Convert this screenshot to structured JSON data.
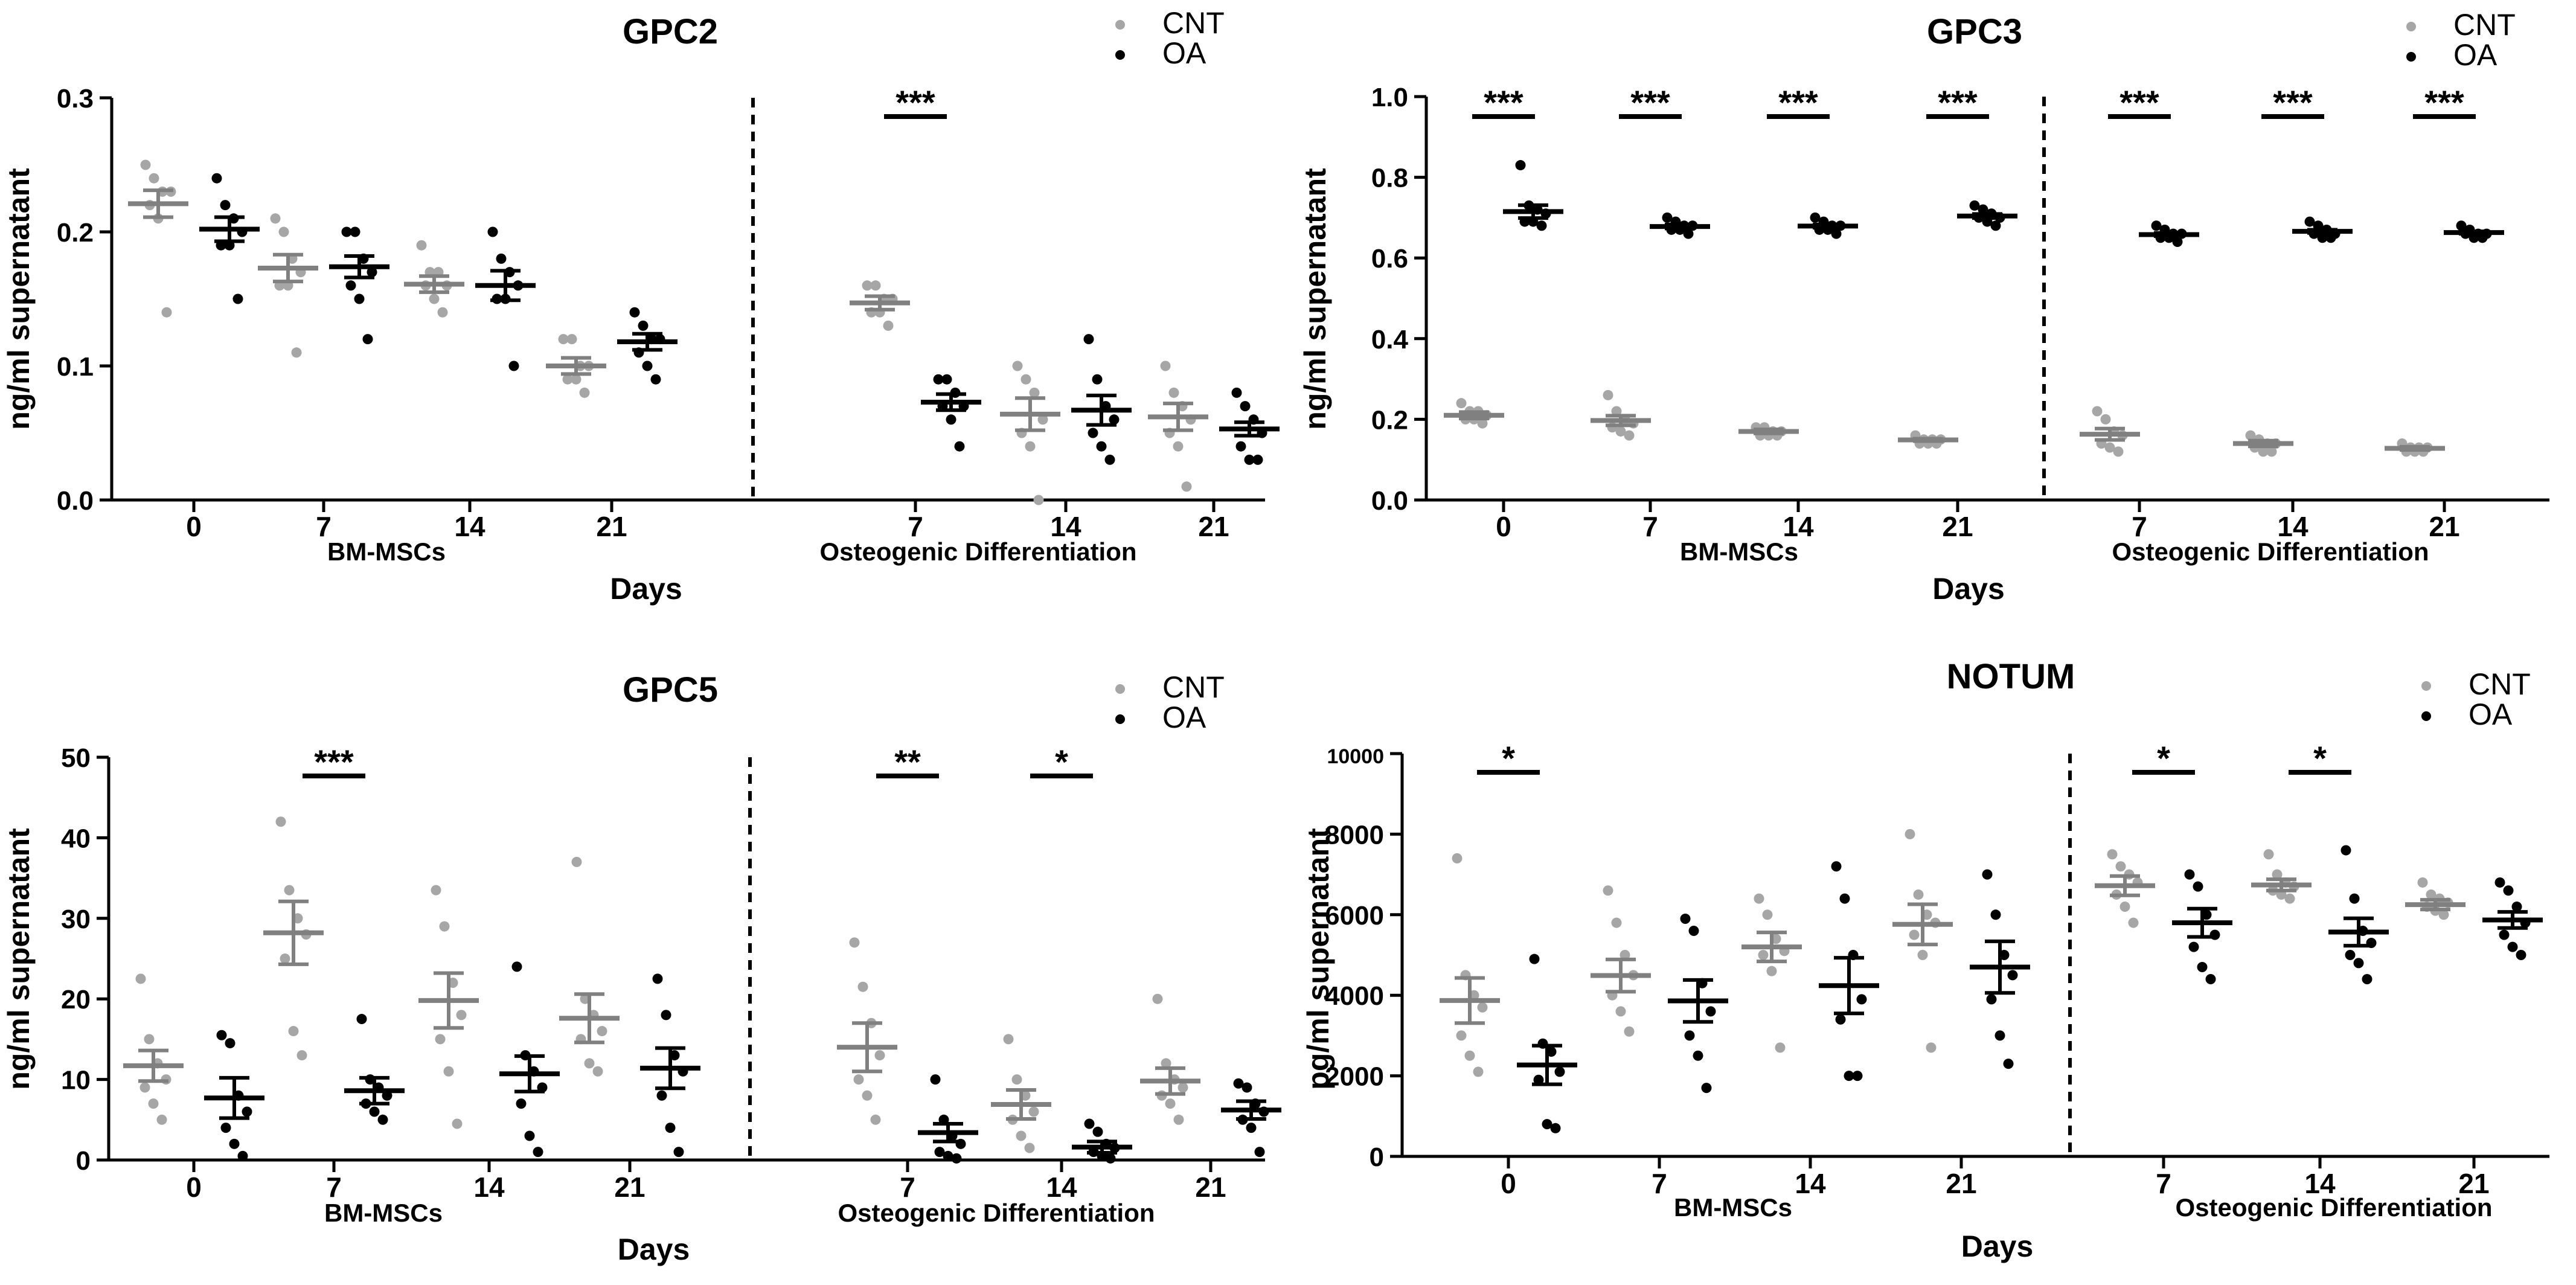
{
  "colors": {
    "CNT": "#a6a6a6",
    "CNT_mean": "#808080",
    "OA": "#000000"
  },
  "chart_data": [
    {
      "type": "scatter",
      "title": "GPC2",
      "ylabel": "ng/ml supernatant",
      "xlabel": "Days",
      "ylim": [
        0,
        0.3
      ],
      "yticks": [
        "0.0",
        "0.1",
        "0.2",
        "0.3"
      ],
      "legend": {
        "placement": "top-right",
        "entries": [
          "CNT",
          "OA"
        ]
      },
      "groups": [
        {
          "name": "BM-MSCs",
          "days": [
            "0",
            "7",
            "14",
            "21"
          ]
        },
        {
          "name": "Osteogenic Differentiation",
          "days": [
            "7",
            "14",
            "21"
          ]
        }
      ],
      "series": [
        {
          "name": "CNT",
          "mean": [
            0.221,
            0.173,
            0.161,
            0.1,
            0.147,
            0.064,
            0.062
          ],
          "sem": [
            0.01,
            0.01,
            0.006,
            0.006,
            0.005,
            0.012,
            0.01
          ],
          "points": [
            [
              0.25,
              0.24,
              0.23,
              0.23,
              0.22,
              0.21,
              0.14
            ],
            [
              0.21,
              0.2,
              0.18,
              0.17,
              0.16,
              0.16,
              0.11
            ],
            [
              0.19,
              0.17,
              0.17,
              0.16,
              0.16,
              0.15,
              0.14
            ],
            [
              0.12,
              0.12,
              0.1,
              0.1,
              0.09,
              0.09,
              0.08
            ],
            [
              0.16,
              0.16,
              0.15,
              0.15,
              0.14,
              0.14,
              0.13
            ],
            [
              0.1,
              0.09,
              0.08,
              0.06,
              0.05,
              0.04,
              0.0
            ],
            [
              0.1,
              0.08,
              0.07,
              0.06,
              0.05,
              0.04,
              0.01
            ]
          ]
        },
        {
          "name": "OA",
          "mean": [
            0.202,
            0.174,
            0.16,
            0.118,
            0.073,
            0.067,
            0.053
          ],
          "sem": [
            0.009,
            0.008,
            0.011,
            0.006,
            0.006,
            0.011,
            0.005
          ],
          "points": [
            [
              0.24,
              0.22,
              0.21,
              0.2,
              0.19,
              0.19,
              0.15
            ],
            [
              0.2,
              0.2,
              0.18,
              0.17,
              0.16,
              0.15,
              0.12
            ],
            [
              0.2,
              0.18,
              0.17,
              0.16,
              0.15,
              0.15,
              0.1
            ],
            [
              0.14,
              0.13,
              0.12,
              0.12,
              0.11,
              0.1,
              0.09
            ],
            [
              0.09,
              0.09,
              0.08,
              0.07,
              0.07,
              0.06,
              0.04
            ],
            [
              0.12,
              0.09,
              0.07,
              0.06,
              0.05,
              0.04,
              0.03
            ],
            [
              0.08,
              0.07,
              0.06,
              0.05,
              0.04,
              0.03,
              0.03
            ]
          ]
        }
      ],
      "significance": [
        {
          "index": 4,
          "label": "***"
        }
      ]
    },
    {
      "type": "scatter",
      "title": "GPC3",
      "ylabel": "ng/ml supernatant",
      "xlabel": "Days",
      "ylim": [
        0,
        1.0
      ],
      "yticks": [
        "0.0",
        "0.2",
        "0.4",
        "0.6",
        "0.8",
        "1.0"
      ],
      "legend": {
        "placement": "top-right",
        "entries": [
          "CNT",
          "OA"
        ]
      },
      "groups": [
        {
          "name": "BM-MSCs",
          "days": [
            "0",
            "7",
            "14",
            "21"
          ]
        },
        {
          "name": "Osteogenic Differentiation",
          "days": [
            "7",
            "14",
            "21"
          ]
        }
      ],
      "series": [
        {
          "name": "CNT",
          "mean": [
            0.21,
            0.197,
            0.17,
            0.149,
            0.163,
            0.14,
            0.128
          ],
          "sem": [
            0.008,
            0.012,
            0.005,
            0.003,
            0.014,
            0.007,
            0.004
          ],
          "points": [
            [
              0.24,
              0.22,
              0.22,
              0.21,
              0.2,
              0.2,
              0.19
            ],
            [
              0.26,
              0.22,
              0.2,
              0.19,
              0.18,
              0.17,
              0.16
            ],
            [
              0.18,
              0.18,
              0.17,
              0.17,
              0.16,
              0.16,
              0.16
            ],
            [
              0.16,
              0.15,
              0.15,
              0.15,
              0.14,
              0.14,
              0.14
            ],
            [
              0.22,
              0.2,
              0.17,
              0.16,
              0.14,
              0.13,
              0.12
            ],
            [
              0.16,
              0.15,
              0.14,
              0.14,
              0.13,
              0.12,
              0.12
            ],
            [
              0.14,
              0.13,
              0.13,
              0.13,
              0.12,
              0.12,
              0.12
            ]
          ]
        },
        {
          "name": "OA",
          "mean": [
            0.715,
            0.678,
            0.679,
            0.704,
            0.658,
            0.666,
            0.663
          ],
          "sem": [
            0.016,
            0.005,
            0.004,
            0.005,
            0.004,
            0.004,
            0.003
          ],
          "points": [
            [
              0.83,
              0.73,
              0.72,
              0.71,
              0.69,
              0.69,
              0.68
            ],
            [
              0.7,
              0.69,
              0.68,
              0.68,
              0.67,
              0.67,
              0.66
            ],
            [
              0.7,
              0.69,
              0.68,
              0.68,
              0.67,
              0.67,
              0.66
            ],
            [
              0.73,
              0.72,
              0.71,
              0.7,
              0.7,
              0.69,
              0.68
            ],
            [
              0.68,
              0.67,
              0.66,
              0.66,
              0.65,
              0.65,
              0.64
            ],
            [
              0.69,
              0.68,
              0.67,
              0.66,
              0.66,
              0.65,
              0.65
            ],
            [
              0.68,
              0.67,
              0.66,
              0.66,
              0.66,
              0.65,
              0.65
            ]
          ]
        }
      ],
      "significance": [
        {
          "index": 0,
          "label": "***"
        },
        {
          "index": 1,
          "label": "***"
        },
        {
          "index": 2,
          "label": "***"
        },
        {
          "index": 3,
          "label": "***"
        },
        {
          "index": 4,
          "label": "***"
        },
        {
          "index": 5,
          "label": "***"
        },
        {
          "index": 6,
          "label": "***"
        }
      ]
    },
    {
      "type": "scatter",
      "title": "GPC5",
      "ylabel": "ng/ml supernatant",
      "xlabel": "Days",
      "ylim": [
        0,
        50
      ],
      "yticks": [
        "0",
        "10",
        "20",
        "30",
        "40",
        "50"
      ],
      "legend": {
        "placement": "top-right",
        "entries": [
          "CNT",
          "OA"
        ]
      },
      "groups": [
        {
          "name": "BM-MSCs",
          "days": [
            "0",
            "7",
            "14",
            "21"
          ]
        },
        {
          "name": "Osteogenic Differentiation",
          "days": [
            "7",
            "14",
            "21"
          ]
        }
      ],
      "series": [
        {
          "name": "CNT",
          "mean": [
            11.7,
            28.2,
            19.8,
            17.6,
            14.0,
            6.9,
            9.8
          ],
          "sem": [
            1.9,
            3.9,
            3.4,
            3.0,
            3.0,
            1.8,
            1.6
          ],
          "points": [
            [
              22.5,
              15.0,
              12.0,
              10.0,
              9.0,
              7.0,
              5.0
            ],
            [
              42.0,
              33.5,
              30.0,
              28.0,
              25.0,
              16.0,
              13.0
            ],
            [
              33.5,
              29.0,
              22.0,
              18.0,
              15.0,
              11.0,
              4.5
            ],
            [
              37.0,
              20.0,
              18.0,
              16.0,
              15.0,
              12.0,
              11.0
            ],
            [
              27.0,
              21.5,
              17.0,
              13.0,
              10.0,
              8.0,
              5.0
            ],
            [
              15.0,
              10.0,
              8.0,
              6.0,
              5.0,
              3.0,
              1.5
            ],
            [
              20.0,
              12.0,
              10.0,
              9.0,
              8.0,
              7.0,
              5.0
            ]
          ]
        },
        {
          "name": "OA",
          "mean": [
            7.7,
            8.6,
            10.7,
            11.4,
            3.4,
            1.6,
            6.2
          ],
          "sem": [
            2.5,
            1.6,
            2.2,
            2.5,
            1.1,
            0.7,
            1.1
          ],
          "points": [
            [
              15.5,
              14.5,
              8.0,
              6.0,
              4.0,
              2.0,
              0.5
            ],
            [
              17.5,
              10.0,
              9.0,
              8.0,
              7.0,
              6.0,
              5.0
            ],
            [
              24.0,
              13.0,
              11.0,
              9.0,
              7.0,
              3.0,
              1.0
            ],
            [
              22.5,
              18.0,
              13.0,
              11.0,
              8.0,
              4.0,
              1.0
            ],
            [
              10.0,
              5.0,
              3.0,
              2.0,
              1.0,
              0.5,
              0.2
            ],
            [
              4.5,
              3.5,
              2.0,
              1.5,
              1.0,
              0.5,
              0.2
            ],
            [
              9.5,
              9.0,
              7.0,
              6.0,
              5.0,
              4.0,
              1.0
            ]
          ]
        }
      ],
      "significance": [
        {
          "index": 1,
          "label": "***"
        },
        {
          "index": 4,
          "label": "**"
        },
        {
          "index": 5,
          "label": "*"
        }
      ]
    },
    {
      "type": "scatter",
      "title": "NOTUM",
      "ylabel": "pg/ml supernatant",
      "xlabel": "Days",
      "ylim": [
        0,
        10000
      ],
      "yticks": [
        "0",
        "2000",
        "4000",
        "6000",
        "8000",
        "10000"
      ],
      "legend": {
        "placement": "top-right",
        "entries": [
          "CNT",
          "OA"
        ]
      },
      "groups": [
        {
          "name": "BM-MSCs",
          "days": [
            "0",
            "7",
            "14",
            "21"
          ]
        },
        {
          "name": "Osteogenic Differentiation",
          "days": [
            "7",
            "14",
            "21"
          ]
        }
      ],
      "series": [
        {
          "name": "CNT",
          "mean": [
            3870,
            4490,
            5200,
            5760,
            6720,
            6740,
            6250
          ],
          "sem": [
            560,
            400,
            360,
            500,
            240,
            140,
            120
          ],
          "points": [
            [
              7400,
              4500,
              4000,
              3700,
              3000,
              2500,
              2100
            ],
            [
              6600,
              5800,
              5000,
              4500,
              4000,
              3600,
              3100
            ],
            [
              6400,
              6000,
              5400,
              5100,
              5000,
              4600,
              2700
            ],
            [
              8000,
              6500,
              6000,
              5800,
              5500,
              5000,
              2700
            ],
            [
              7500,
              7200,
              7000,
              6800,
              6500,
              6200,
              5800
            ],
            [
              7500,
              7000,
              6800,
              6700,
              6600,
              6500,
              6400
            ],
            [
              6800,
              6500,
              6400,
              6300,
              6200,
              6100,
              6000
            ]
          ]
        },
        {
          "name": "OA",
          "mean": [
            2270,
            3860,
            4240,
            4700,
            5800,
            5570,
            5870
          ],
          "sem": [
            480,
            520,
            690,
            640,
            350,
            340,
            200
          ],
          "points": [
            [
              4900,
              2800,
              2600,
              2100,
              1900,
              800,
              700
            ],
            [
              5900,
              5600,
              4300,
              3600,
              3000,
              2500,
              1700
            ],
            [
              7200,
              6400,
              5000,
              3900,
              3400,
              2000,
              2000
            ],
            [
              7000,
              6000,
              5000,
              4500,
              3900,
              3000,
              2300
            ],
            [
              7000,
              6700,
              6000,
              5500,
              5200,
              4700,
              4400
            ],
            [
              7600,
              6400,
              5600,
              5300,
              5000,
              4800,
              4400
            ],
            [
              6800,
              6600,
              6200,
              5800,
              5500,
              5200,
              5000
            ]
          ]
        }
      ],
      "significance": [
        {
          "index": 0,
          "label": "*"
        },
        {
          "index": 4,
          "label": "*"
        },
        {
          "index": 5,
          "label": "*"
        }
      ]
    }
  ]
}
